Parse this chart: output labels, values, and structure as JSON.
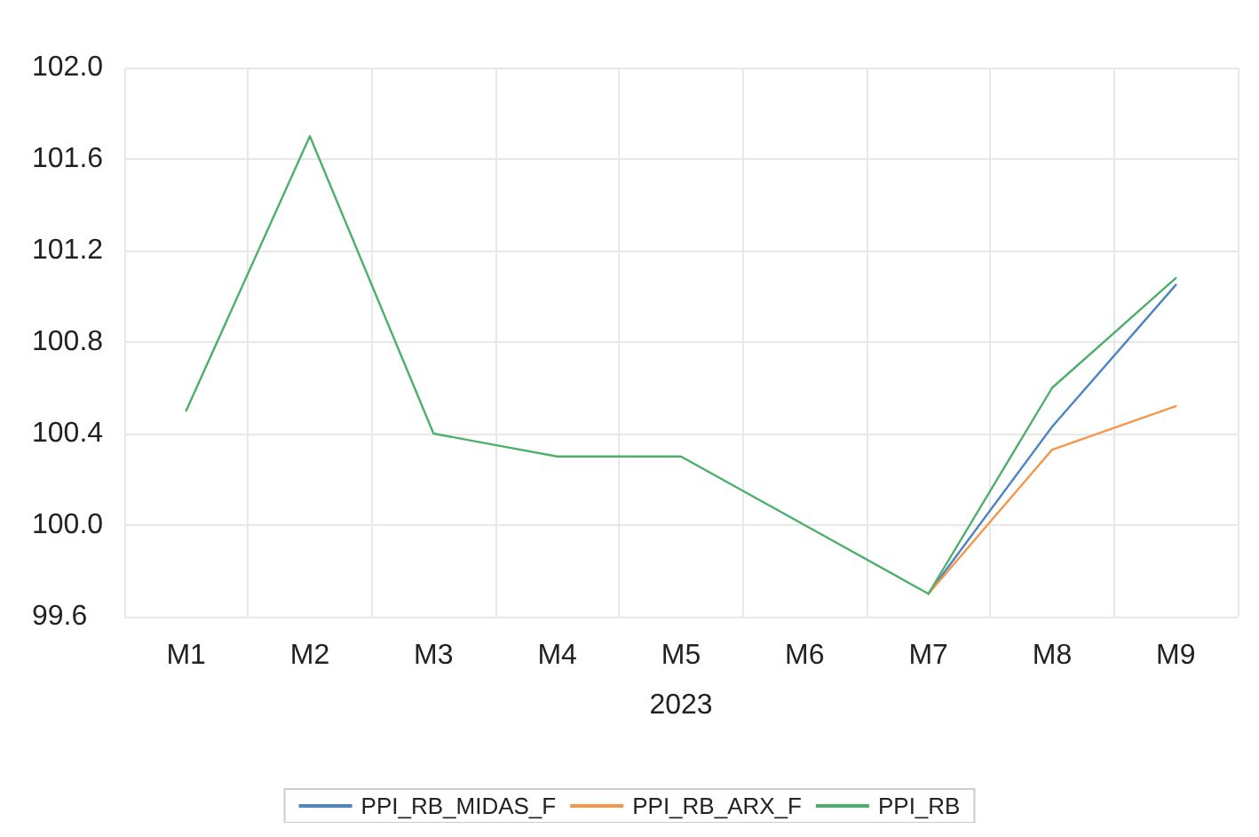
{
  "chart_data": {
    "type": "line",
    "xlabel": "2023",
    "categories": [
      "M1",
      "M2",
      "M3",
      "M4",
      "M5",
      "M6",
      "M7",
      "M8",
      "M9"
    ],
    "series": [
      {
        "name": "PPI_RB_MIDAS_F",
        "color": "#4c84c4",
        "values": [
          null,
          null,
          null,
          null,
          null,
          null,
          99.7,
          100.43,
          101.05
        ]
      },
      {
        "name": "PPI_RB_ARX_F",
        "color": "#f5964a",
        "values": [
          null,
          null,
          null,
          null,
          null,
          null,
          99.7,
          100.33,
          100.52
        ]
      },
      {
        "name": "PPI_RB",
        "color": "#4caf6a",
        "values": [
          100.5,
          101.7,
          100.4,
          100.3,
          100.3,
          100.0,
          99.7,
          100.6,
          101.08
        ]
      }
    ],
    "ylim": [
      99.6,
      102.0
    ],
    "yticks": [
      {
        "value": 99.6,
        "label": "99.6"
      },
      {
        "value": 100.0,
        "label": "100.0"
      },
      {
        "value": 100.4,
        "label": "100.4"
      },
      {
        "value": 100.8,
        "label": "100.8"
      },
      {
        "value": 101.2,
        "label": "101.2"
      },
      {
        "value": 101.6,
        "label": "101.6"
      },
      {
        "value": 102.0,
        "label": "102.0"
      }
    ],
    "grid": true,
    "legend": "bottom",
    "marker": "none",
    "line_style": "solid"
  }
}
